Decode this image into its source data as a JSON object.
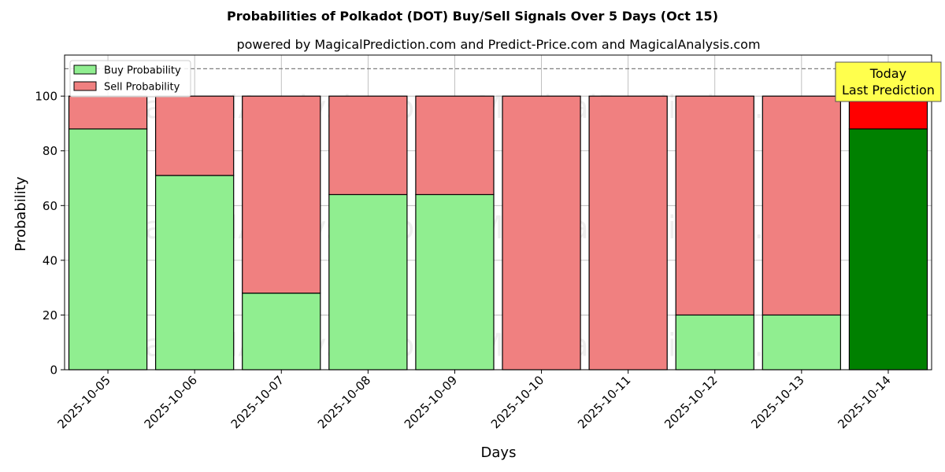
{
  "chart_data": {
    "type": "bar",
    "stacked": true,
    "title": "Probabilities of Polkadot (DOT) Buy/Sell Signals Over 5 Days (Oct 15)",
    "subtitle": "powered by MagicalPrediction.com and Predict-Price.com and MagicalAnalysis.com",
    "xlabel": "Days",
    "ylabel": "Probability",
    "ylim": [
      0,
      115
    ],
    "yticks": [
      0,
      20,
      40,
      60,
      80,
      100
    ],
    "grid": true,
    "legend_position": "top-left",
    "categories": [
      "2025-10-05",
      "2025-10-06",
      "2025-10-07",
      "2025-10-08",
      "2025-10-09",
      "2025-10-10",
      "2025-10-11",
      "2025-10-12",
      "2025-10-13",
      "2025-10-14"
    ],
    "series": [
      {
        "name": "Buy Probability",
        "values": [
          88,
          71,
          28,
          64,
          64,
          0,
          0,
          20,
          20,
          88
        ],
        "color": "#90ee90",
        "highlight_color": "#008000"
      },
      {
        "name": "Sell Probability",
        "values": [
          12,
          29,
          72,
          36,
          36,
          100,
          100,
          80,
          80,
          12
        ],
        "color": "#f08080",
        "highlight_color": "#ff0000"
      }
    ],
    "highlight_index": 9,
    "reference_line": {
      "y": 110,
      "style": "dashed"
    },
    "annotation": {
      "lines": [
        "Today",
        "Last Prediction"
      ],
      "category_index": 9,
      "background": "#ffff4d"
    },
    "watermarks": [
      "MagicalAnalysis.com",
      "MagicalPrediction.com"
    ]
  }
}
